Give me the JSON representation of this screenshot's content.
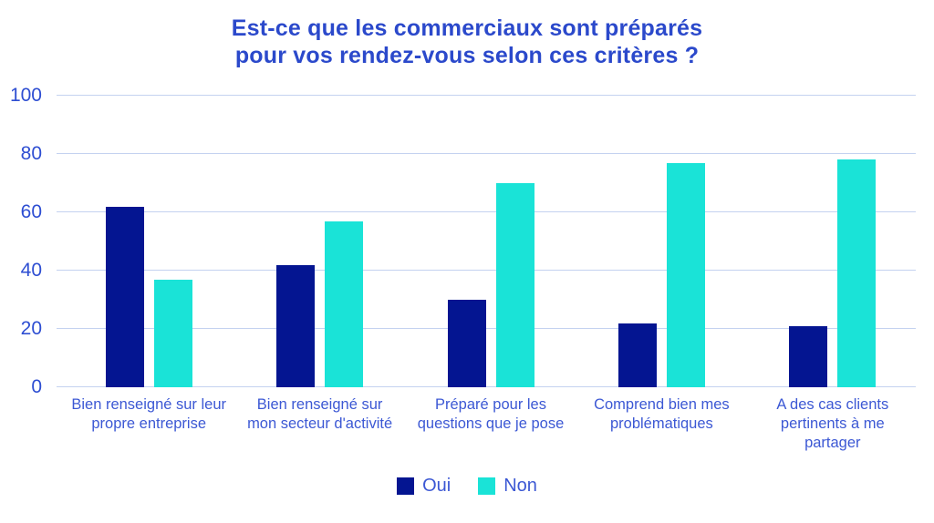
{
  "title": {
    "line1": "Est-ce que les commerciaux sont préparés",
    "line2": "pour vos rendez-vous selon ces critères ?"
  },
  "chart_data": {
    "type": "bar",
    "title": "Est-ce que les commerciaux sont préparés pour vos rendez-vous selon ces critères ?",
    "categories": [
      "Bien renseigné sur leur\npropre entreprise",
      "Bien renseigné sur\nmon secteur d'activité",
      "Préparé pour les\nquestions que je pose",
      "Comprend bien mes\nproblématiques",
      "A des cas clients\npertinents à me\npartager"
    ],
    "series": [
      {
        "name": "Oui",
        "color": "#041591",
        "values": [
          62,
          42,
          30,
          22,
          21
        ]
      },
      {
        "name": "Non",
        "color": "#1ae3d7",
        "values": [
          37,
          57,
          70,
          77,
          78
        ]
      }
    ],
    "xlabel": "",
    "ylabel": "",
    "ylim": [
      0,
      100
    ],
    "yticks": [
      0,
      20,
      40,
      60,
      80,
      100
    ],
    "grid": true,
    "legend_position": "bottom"
  },
  "colors": {
    "title": "#2b49cb",
    "axis_tick_label": "#2e4ed2",
    "category_label": "#3c58d4",
    "gridline": "#c4d2f0",
    "background": "#ffffff",
    "series_oui": "#041591",
    "series_non": "#1ae3d7"
  }
}
